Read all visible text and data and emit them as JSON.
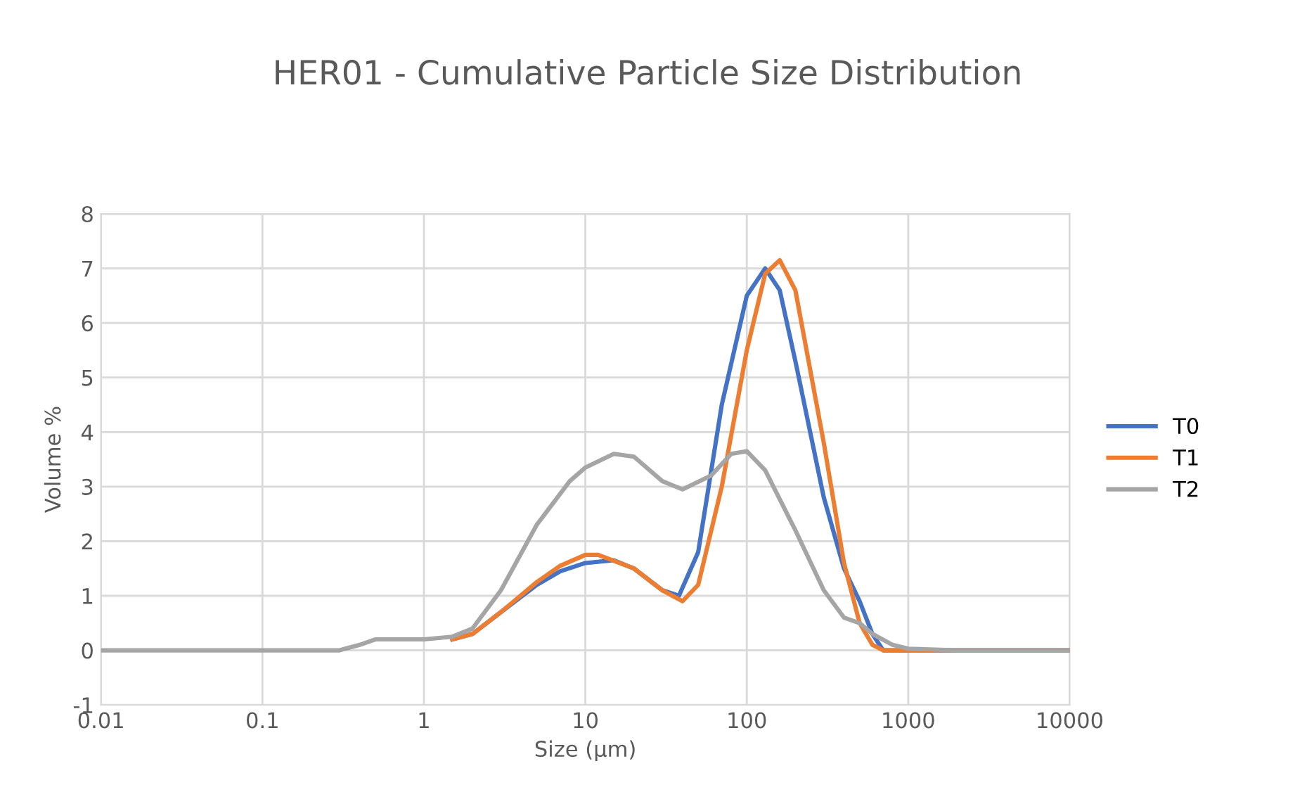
{
  "chart_data": {
    "type": "line",
    "title": "HER01 - Cumulative Particle Size Distribution",
    "xlabel": "Size (µm)",
    "ylabel": "Volume %",
    "log": "x",
    "xlim": [
      0.01,
      10000
    ],
    "xticks": [
      {
        "value": 0.01,
        "label": "0.01"
      },
      {
        "value": 0.1,
        "label": "0.1"
      },
      1,
      10,
      100,
      1000,
      10000
    ],
    "ylim": [
      -1,
      8
    ],
    "yticks": [
      -1,
      0,
      1,
      2,
      3,
      4,
      5,
      6,
      7,
      8
    ],
    "grid": true,
    "legend": "right",
    "marker": "none",
    "line_style": "solid",
    "series": [
      {
        "name": "T0",
        "color": "#4472c4",
        "x": [
          1.5,
          2,
          3,
          5,
          7,
          10,
          15,
          20,
          30,
          38,
          50,
          70,
          100,
          130,
          160,
          200,
          300,
          400,
          500,
          600,
          700,
          1000,
          10000
        ],
        "values": [
          0.2,
          0.3,
          0.7,
          1.2,
          1.45,
          1.6,
          1.65,
          1.5,
          1.1,
          1.0,
          1.8,
          4.5,
          6.5,
          7.0,
          6.6,
          5.3,
          2.8,
          1.5,
          0.9,
          0.3,
          0,
          0,
          0
        ]
      },
      {
        "name": "T1",
        "color": "#ed7d31",
        "x": [
          1.5,
          2,
          3,
          5,
          7,
          10,
          12,
          20,
          30,
          40,
          50,
          70,
          100,
          130,
          160,
          200,
          300,
          400,
          500,
          600,
          700,
          1000,
          10000
        ],
        "values": [
          0.2,
          0.3,
          0.7,
          1.25,
          1.55,
          1.75,
          1.75,
          1.5,
          1.1,
          0.9,
          1.2,
          3.0,
          5.5,
          6.9,
          7.15,
          6.6,
          3.8,
          1.6,
          0.5,
          0.1,
          0,
          0,
          0
        ]
      },
      {
        "name": "T2",
        "color": "#a5a5a5",
        "x": [
          0.01,
          0.1,
          0.3,
          0.4,
          0.5,
          0.7,
          1,
          1.5,
          2,
          3,
          5,
          8,
          10,
          15,
          20,
          30,
          40,
          60,
          80,
          100,
          130,
          200,
          300,
          400,
          500,
          600,
          800,
          1000,
          2000,
          10000
        ],
        "values": [
          0,
          0,
          0,
          0.1,
          0.2,
          0.2,
          0.2,
          0.25,
          0.4,
          1.1,
          2.3,
          3.1,
          3.35,
          3.6,
          3.55,
          3.1,
          2.95,
          3.2,
          3.6,
          3.65,
          3.3,
          2.2,
          1.1,
          0.6,
          0.5,
          0.3,
          0.1,
          0.03,
          0,
          0
        ]
      }
    ]
  }
}
